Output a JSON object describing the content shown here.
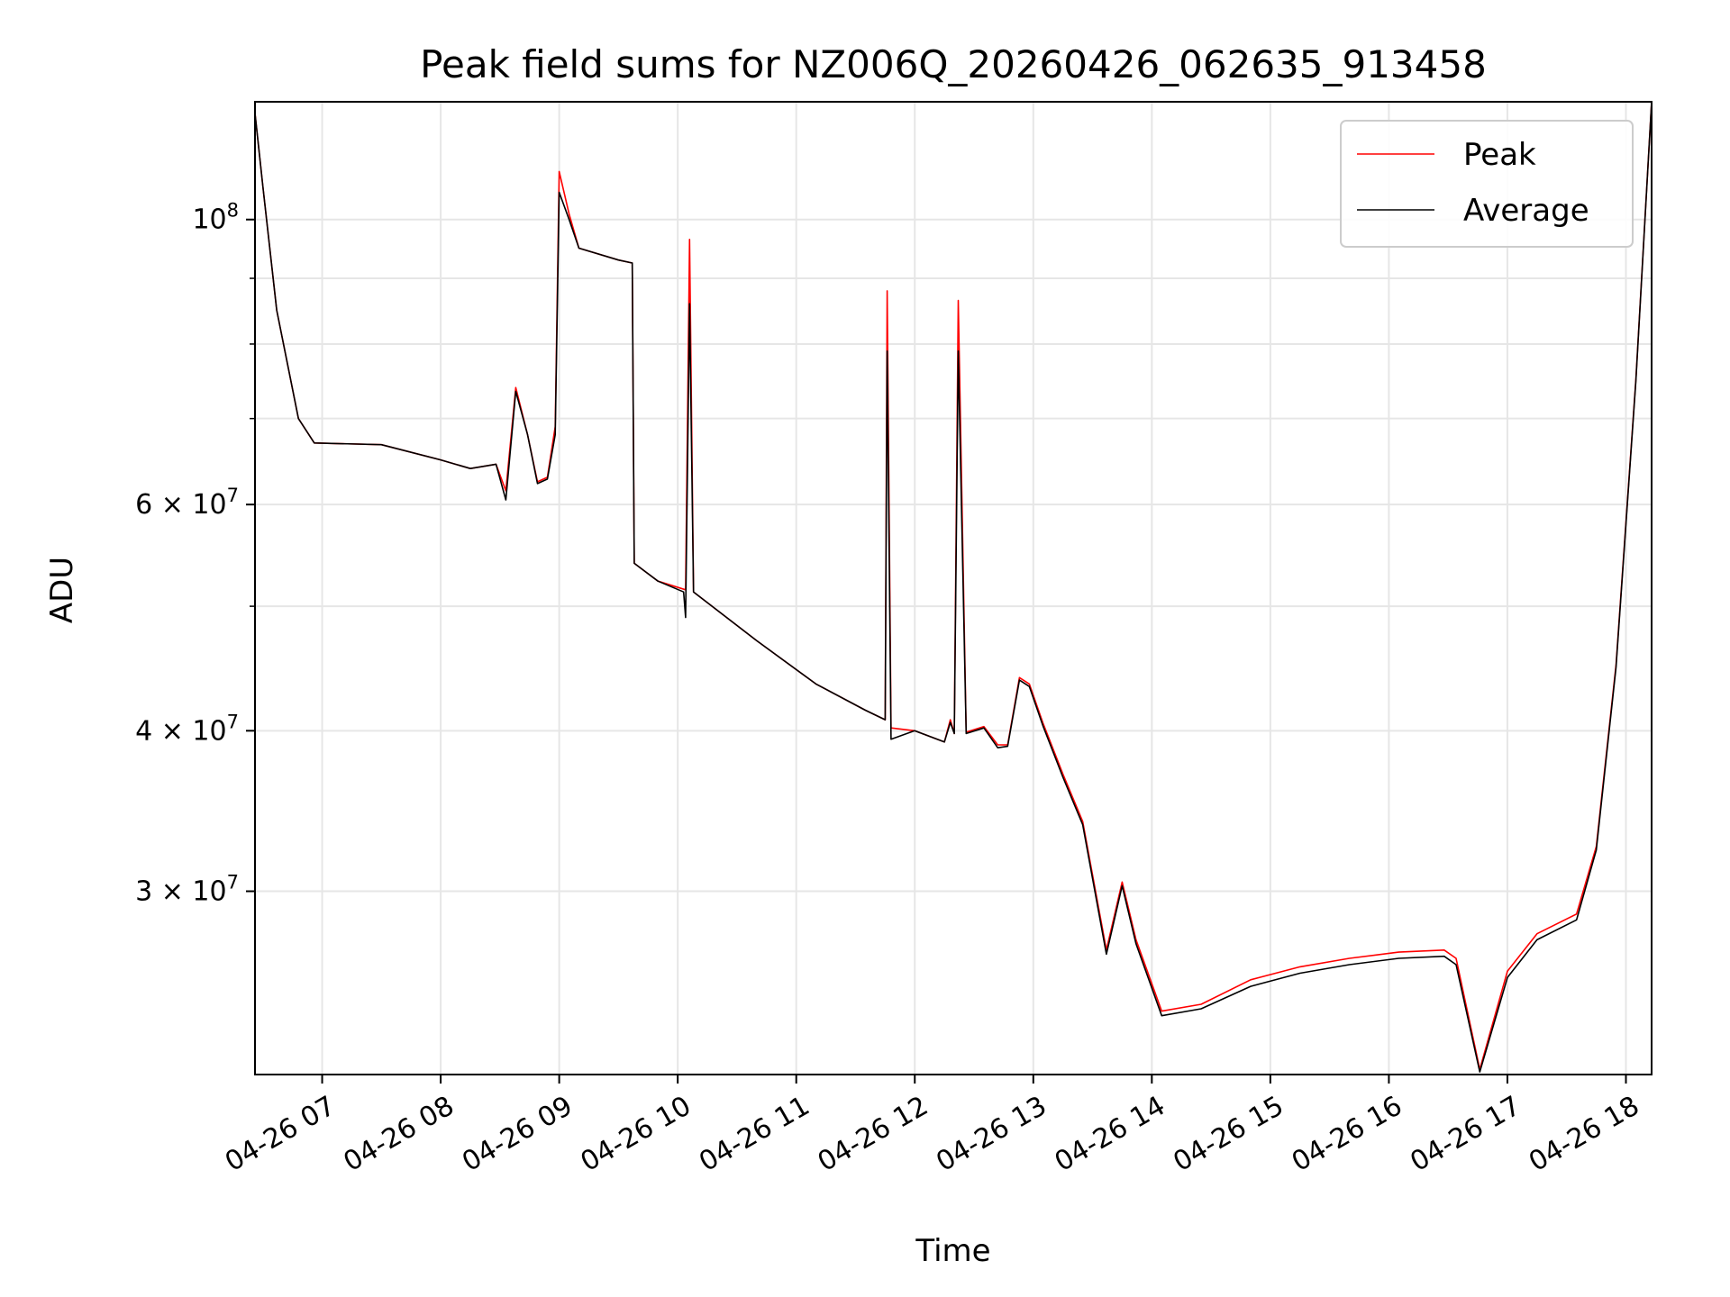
{
  "chart_data": {
    "type": "line",
    "title": "Peak field sums for NZ006Q_20260426_062635_913458",
    "xlabel": "Time",
    "ylabel": "ADU",
    "yscale": "log",
    "xlim": [
      "04-26 06:26",
      "04-26 18:13"
    ],
    "ylim": [
      21600000,
      123500000
    ],
    "grid": true,
    "legend_position": "upper right",
    "x_ticks": [
      "04-26 07",
      "04-26 08",
      "04-26 09",
      "04-26 10",
      "04-26 11",
      "04-26 12",
      "04-26 13",
      "04-26 14",
      "04-26 15",
      "04-26 16",
      "04-26 17",
      "04-26 18"
    ],
    "y_ticks": [
      {
        "value": 30000000,
        "label": "3 × 10^7"
      },
      {
        "value": 40000000,
        "label": "4 × 10^7"
      },
      {
        "value": 60000000,
        "label": "6 × 10^7"
      },
      {
        "value": 100000000,
        "label": "10^8"
      }
    ],
    "y_minor_ticks": [
      50000000,
      70000000,
      80000000,
      90000000
    ],
    "series": [
      {
        "name": "Peak",
        "color": "#ff0000",
        "points": [
          [
            "04-26 06:26",
            121000000
          ],
          [
            "04-26 06:30",
            106000000
          ],
          [
            "04-26 06:37",
            85000000
          ],
          [
            "04-26 06:48",
            70000000
          ],
          [
            "04-26 06:56",
            67000000
          ],
          [
            "04-26 07:30",
            66800000
          ],
          [
            "04-26 08:00",
            65000000
          ],
          [
            "04-26 08:15",
            64000000
          ],
          [
            "04-26 08:28",
            64500000
          ],
          [
            "04-26 08:33",
            61500000
          ],
          [
            "04-26 08:38",
            74000000
          ],
          [
            "04-26 08:44",
            68000000
          ],
          [
            "04-26 08:49",
            62500000
          ],
          [
            "04-26 08:54",
            63000000
          ],
          [
            "04-26 08:58",
            69000000
          ],
          [
            "04-26 09:00",
            109000000
          ],
          [
            "04-26 09:05",
            101000000
          ],
          [
            "04-26 09:10",
            95000000
          ],
          [
            "04-26 09:30",
            93000000
          ],
          [
            "04-26 09:37",
            92500000
          ],
          [
            "04-26 09:38",
            54000000
          ],
          [
            "04-26 09:50",
            52300000
          ],
          [
            "04-26 10:04",
            51500000
          ],
          [
            "04-26 10:06",
            96500000
          ],
          [
            "04-26 10:08",
            51300000
          ],
          [
            "04-26 10:40",
            47000000
          ],
          [
            "04-26 11:10",
            43500000
          ],
          [
            "04-26 11:35",
            41500000
          ],
          [
            "04-26 11:45",
            40800000
          ],
          [
            "04-26 11:46",
            88000000
          ],
          [
            "04-26 11:48",
            40200000
          ],
          [
            "04-26 12:00",
            40000000
          ],
          [
            "04-26 12:15",
            39200000
          ],
          [
            "04-26 12:18",
            40800000
          ],
          [
            "04-26 12:20",
            39800000
          ],
          [
            "04-26 12:22",
            86500000
          ],
          [
            "04-26 12:26",
            39900000
          ],
          [
            "04-26 12:35",
            40300000
          ],
          [
            "04-26 12:42",
            39000000
          ],
          [
            "04-26 12:47",
            39000000
          ],
          [
            "04-26 12:53",
            44000000
          ],
          [
            "04-26 12:58",
            43500000
          ],
          [
            "04-26 13:05",
            40500000
          ],
          [
            "04-26 13:15",
            37000000
          ],
          [
            "04-26 13:25",
            34000000
          ],
          [
            "04-26 13:37",
            27000000
          ],
          [
            "04-26 13:45",
            30500000
          ],
          [
            "04-26 13:52",
            27500000
          ],
          [
            "04-26 14:05",
            24200000
          ],
          [
            "04-26 14:25",
            24500000
          ],
          [
            "04-26 14:50",
            25600000
          ],
          [
            "04-26 15:15",
            26200000
          ],
          [
            "04-26 15:40",
            26600000
          ],
          [
            "04-26 16:05",
            26900000
          ],
          [
            "04-26 16:28",
            27000000
          ],
          [
            "04-26 16:34",
            26600000
          ],
          [
            "04-26 16:46",
            21800000
          ],
          [
            "04-26 17:00",
            26000000
          ],
          [
            "04-26 17:15",
            27800000
          ],
          [
            "04-26 17:35",
            28800000
          ],
          [
            "04-26 17:45",
            32500000
          ],
          [
            "04-26 17:55",
            45000000
          ],
          [
            "04-26 18:05",
            75000000
          ],
          [
            "04-26 18:13",
            123500000
          ]
        ]
      },
      {
        "name": "Average",
        "color": "#000000",
        "points": [
          [
            "04-26 06:26",
            121000000
          ],
          [
            "04-26 06:30",
            106000000
          ],
          [
            "04-26 06:37",
            85000000
          ],
          [
            "04-26 06:48",
            70000000
          ],
          [
            "04-26 06:56",
            67000000
          ],
          [
            "04-26 07:30",
            66800000
          ],
          [
            "04-26 08:00",
            65000000
          ],
          [
            "04-26 08:15",
            64000000
          ],
          [
            "04-26 08:28",
            64500000
          ],
          [
            "04-26 08:33",
            60500000
          ],
          [
            "04-26 08:38",
            73500000
          ],
          [
            "04-26 08:44",
            68000000
          ],
          [
            "04-26 08:49",
            62300000
          ],
          [
            "04-26 08:54",
            62800000
          ],
          [
            "04-26 08:58",
            68000000
          ],
          [
            "04-26 09:00",
            105000000
          ],
          [
            "04-26 09:05",
            100000000
          ],
          [
            "04-26 09:10",
            95000000
          ],
          [
            "04-26 09:30",
            93000000
          ],
          [
            "04-26 09:37",
            92500000
          ],
          [
            "04-26 09:38",
            54000000
          ],
          [
            "04-26 09:50",
            52300000
          ],
          [
            "04-26 10:03",
            51300000
          ],
          [
            "04-26 10:04",
            49000000
          ],
          [
            "04-26 10:06",
            86000000
          ],
          [
            "04-26 10:08",
            51300000
          ],
          [
            "04-26 10:40",
            47000000
          ],
          [
            "04-26 11:10",
            43500000
          ],
          [
            "04-26 11:35",
            41500000
          ],
          [
            "04-26 11:45",
            40800000
          ],
          [
            "04-26 11:46",
            79000000
          ],
          [
            "04-26 11:48",
            39400000
          ],
          [
            "04-26 12:00",
            40000000
          ],
          [
            "04-26 12:15",
            39200000
          ],
          [
            "04-26 12:18",
            40600000
          ],
          [
            "04-26 12:20",
            39800000
          ],
          [
            "04-26 12:22",
            79000000
          ],
          [
            "04-26 12:26",
            39800000
          ],
          [
            "04-26 12:35",
            40200000
          ],
          [
            "04-26 12:42",
            38800000
          ],
          [
            "04-26 12:47",
            38900000
          ],
          [
            "04-26 12:53",
            43800000
          ],
          [
            "04-26 12:58",
            43300000
          ],
          [
            "04-26 13:05",
            40300000
          ],
          [
            "04-26 13:15",
            36800000
          ],
          [
            "04-26 13:25",
            33800000
          ],
          [
            "04-26 13:37",
            26800000
          ],
          [
            "04-26 13:45",
            30300000
          ],
          [
            "04-26 13:52",
            27300000
          ],
          [
            "04-26 14:05",
            24000000
          ],
          [
            "04-26 14:25",
            24300000
          ],
          [
            "04-26 14:50",
            25300000
          ],
          [
            "04-26 15:15",
            25900000
          ],
          [
            "04-26 15:40",
            26300000
          ],
          [
            "04-26 16:05",
            26600000
          ],
          [
            "04-26 16:28",
            26700000
          ],
          [
            "04-26 16:34",
            26300000
          ],
          [
            "04-26 16:46",
            21700000
          ],
          [
            "04-26 17:00",
            25700000
          ],
          [
            "04-26 17:15",
            27500000
          ],
          [
            "04-26 17:35",
            28500000
          ],
          [
            "04-26 17:45",
            32300000
          ],
          [
            "04-26 17:55",
            44800000
          ],
          [
            "04-26 18:05",
            74800000
          ],
          [
            "04-26 18:13",
            123500000
          ]
        ]
      }
    ]
  }
}
